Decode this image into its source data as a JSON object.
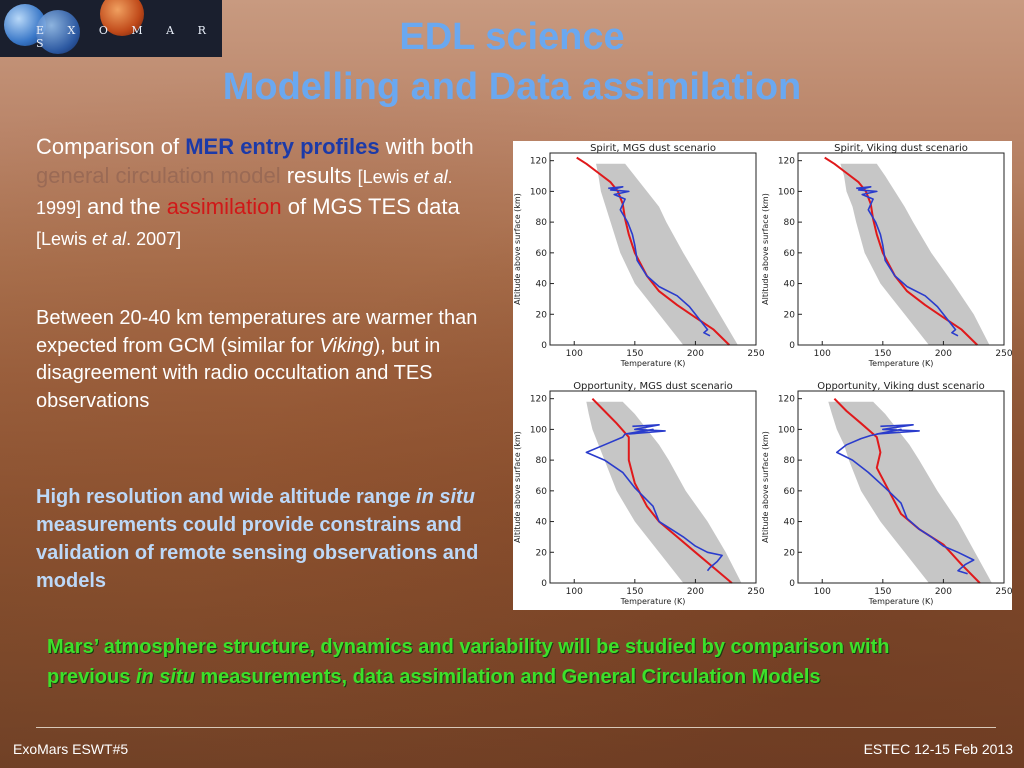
{
  "logo": {
    "text": "E X O M A R S"
  },
  "title": {
    "line1": "EDL science",
    "line2": "Modelling and Data assimilation"
  },
  "para1": {
    "t1": "Comparison of ",
    "mer": "MER",
    "entry_profiles": " entry profiles",
    "t2": " with both ",
    "gcm": "general circulation model",
    "t3": " results ",
    "ref1a": "[Lewis  ",
    "ref1b": "et al",
    "ref1c": ". 1999]",
    "t4": " and the ",
    "assim": "assimilation",
    "t5": " of MGS TES data ",
    "ref2a": "[Lewis  ",
    "ref2b": "et al",
    "ref2c": ". 2007]"
  },
  "para2": {
    "t1": "Between 20-40 km  temperatures are warmer than expected from GCM (similar for ",
    "viking": "Viking",
    "t2": "), but in disagreement with radio occultation and TES observations"
  },
  "para3": {
    "t1": "High resolution and wide altitude range ",
    "insitu": "in situ",
    "t2": "  measurements could provide constrains and validation of remote sensing observations and models"
  },
  "para4": {
    "t1": "Mars’ atmosphere structure, dynamics and variability will be studied by comparison with previous ",
    "insitu": "in situ",
    "t2": " measurements, data assimilation and General Circulation Models"
  },
  "footer": {
    "left": "ExoMars ESWT#5",
    "right": "ESTEC 12-15 Feb 2013"
  },
  "colors": {
    "gcm_red": "#e0191b",
    "mer_blue": "#2a3ccc",
    "ensemble_gray": "#c0c0c0"
  },
  "chart_data": [
    {
      "type": "line",
      "title": "Spirit, MGS dust scenario",
      "xlabel": "Temperature (K)",
      "ylabel": "Altitude above surface (km)",
      "xlim": [
        80,
        250
      ],
      "ylim": [
        0,
        125
      ],
      "xticks": [
        "100",
        "150",
        "200",
        "250"
      ],
      "yticks": [
        "0",
        "20",
        "40",
        "60",
        "80",
        "100",
        "120"
      ],
      "series": [
        {
          "x": [
            102,
            110,
            120,
            130,
            136,
            140,
            142,
            145,
            150,
            160,
            170,
            185,
            200,
            215,
            228
          ],
          "y": [
            122,
            118,
            112,
            106,
            100,
            92,
            82,
            72,
            60,
            45,
            35,
            26,
            18,
            10,
            0
          ]
        },
        {
          "x": [
            128,
            140,
            130,
            145,
            133,
            142,
            138,
            144,
            148,
            150,
            152,
            160,
            170,
            185,
            195,
            200,
            205,
            210,
            207,
            212
          ],
          "y": [
            102,
            103,
            101,
            100,
            98,
            95,
            88,
            80,
            72,
            65,
            55,
            45,
            38,
            32,
            25,
            20,
            15,
            10,
            8,
            6
          ]
        }
      ],
      "band": {
        "x_low": [
          118,
          120,
          122,
          126,
          130,
          138,
          150,
          170,
          190
        ],
        "x_high": [
          142,
          150,
          160,
          170,
          176,
          190,
          205,
          220,
          235
        ],
        "y": [
          118,
          110,
          100,
          90,
          80,
          60,
          40,
          20,
          0
        ]
      }
    },
    {
      "type": "line",
      "title": "Spirit, Viking dust scenario",
      "xlabel": "Temperature (K)",
      "ylabel": "Altitude above surface (km)",
      "xlim": [
        80,
        250
      ],
      "ylim": [
        0,
        125
      ],
      "xticks": [
        "100",
        "150",
        "200",
        "250"
      ],
      "yticks": [
        "0",
        "20",
        "40",
        "60",
        "80",
        "100",
        "120"
      ],
      "series": [
        {
          "x": [
            102,
            110,
            120,
            130,
            136,
            140,
            142,
            145,
            150,
            160,
            170,
            185,
            200,
            215,
            228
          ],
          "y": [
            122,
            118,
            112,
            106,
            100,
            92,
            82,
            72,
            60,
            45,
            35,
            26,
            18,
            10,
            0
          ]
        },
        {
          "x": [
            128,
            140,
            130,
            145,
            133,
            142,
            138,
            144,
            148,
            150,
            152,
            160,
            170,
            185,
            195,
            200,
            205,
            210,
            207,
            212
          ],
          "y": [
            102,
            103,
            101,
            100,
            98,
            95,
            88,
            80,
            72,
            65,
            55,
            45,
            38,
            32,
            25,
            20,
            15,
            10,
            8,
            6
          ]
        }
      ],
      "band": {
        "x_low": [
          115,
          118,
          120,
          125,
          128,
          135,
          148,
          168,
          188
        ],
        "x_high": [
          145,
          152,
          160,
          168,
          175,
          190,
          208,
          225,
          238
        ],
        "y": [
          118,
          110,
          100,
          90,
          80,
          60,
          40,
          20,
          0
        ]
      }
    },
    {
      "type": "line",
      "title": "Opportunity, MGS dust scenario",
      "xlabel": "Temperature (K)",
      "ylabel": "Altitude above surface (km)",
      "xlim": [
        80,
        250
      ],
      "ylim": [
        0,
        125
      ],
      "xticks": [
        "100",
        "150",
        "200",
        "250"
      ],
      "yticks": [
        "0",
        "20",
        "40",
        "60",
        "80",
        "100",
        "120"
      ],
      "series": [
        {
          "x": [
            115,
            125,
            135,
            145,
            145,
            150,
            160,
            170,
            185,
            200,
            215,
            230
          ],
          "y": [
            120,
            112,
            104,
            95,
            80,
            65,
            50,
            40,
            30,
            20,
            10,
            0
          ]
        },
        {
          "x": [
            148,
            170,
            150,
            175,
            145,
            165,
            142,
            140,
            125,
            110,
            125,
            140,
            150,
            165,
            170,
            180,
            190,
            200,
            210,
            222,
            218,
            212,
            210
          ],
          "y": [
            102,
            103,
            100,
            99,
            97,
            100,
            97,
            95,
            90,
            85,
            80,
            72,
            62,
            50,
            40,
            35,
            30,
            24,
            20,
            18,
            14,
            10,
            8
          ]
        }
      ],
      "band": {
        "x_low": [
          110,
          112,
          115,
          120,
          125,
          135,
          150,
          170,
          190
        ],
        "x_high": [
          140,
          150,
          160,
          170,
          178,
          192,
          210,
          225,
          238
        ],
        "y": [
          118,
          110,
          100,
          90,
          80,
          60,
          40,
          20,
          0
        ]
      }
    },
    {
      "type": "line",
      "title": "Opportunity, Viking dust scenario",
      "xlabel": "Temperature (K)",
      "ylabel": "Altitude above surface (km)",
      "xlim": [
        80,
        250
      ],
      "ylim": [
        0,
        125
      ],
      "xticks": [
        "100",
        "150",
        "200",
        "250"
      ],
      "yticks": [
        "0",
        "20",
        "40",
        "60",
        "80",
        "100",
        "120"
      ],
      "series": [
        {
          "x": [
            110,
            120,
            132,
            145,
            148,
            145,
            155,
            165,
            180,
            200,
            215,
            230
          ],
          "y": [
            120,
            112,
            104,
            95,
            85,
            75,
            60,
            45,
            35,
            25,
            12,
            0
          ]
        },
        {
          "x": [
            148,
            175,
            150,
            180,
            145,
            165,
            140,
            132,
            120,
            112,
            125,
            138,
            152,
            165,
            170,
            180,
            190,
            200,
            212,
            225,
            218,
            212,
            220
          ],
          "y": [
            102,
            103,
            100,
            99,
            97,
            100,
            96,
            94,
            90,
            85,
            80,
            72,
            62,
            52,
            42,
            35,
            30,
            24,
            20,
            15,
            12,
            8,
            6
          ]
        }
      ],
      "band": {
        "x_low": [
          105,
          108,
          112,
          118,
          122,
          132,
          148,
          168,
          188
        ],
        "x_high": [
          142,
          152,
          162,
          172,
          180,
          195,
          212,
          226,
          240
        ],
        "y": [
          118,
          110,
          100,
          90,
          80,
          60,
          40,
          20,
          0
        ]
      }
    }
  ]
}
